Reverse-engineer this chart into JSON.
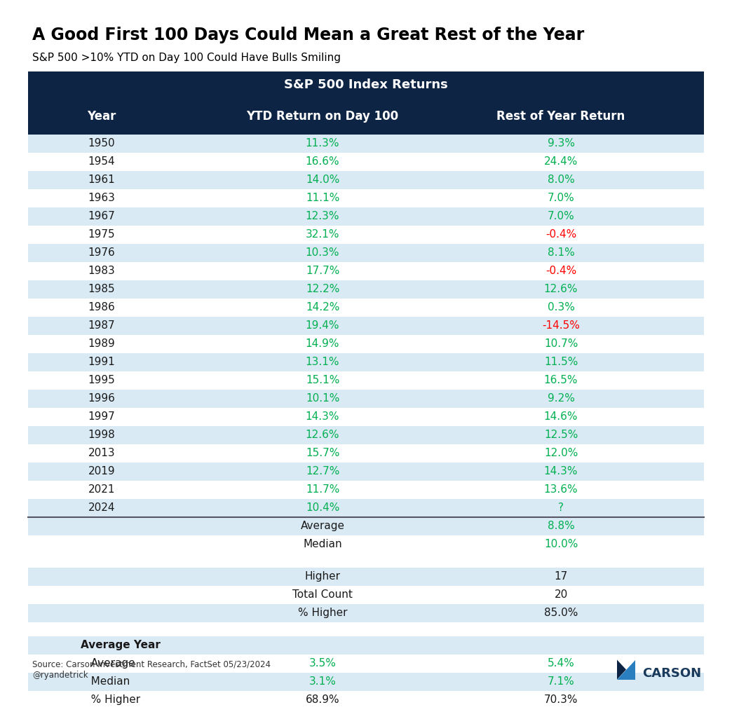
{
  "title": "A Good First 100 Days Could Mean a Great Rest of the Year",
  "subtitle": "S&P 500 >10% YTD on Day 100 Could Have Bulls Smiling",
  "table_header": "S&P 500 Index Returns",
  "col_headers": [
    "Year",
    "YTD Return on Day 100",
    "Rest of Year Return"
  ],
  "rows": [
    [
      "1950",
      "11.3%",
      "9.3%",
      "green",
      "green"
    ],
    [
      "1954",
      "16.6%",
      "24.4%",
      "green",
      "green"
    ],
    [
      "1961",
      "14.0%",
      "8.0%",
      "green",
      "green"
    ],
    [
      "1963",
      "11.1%",
      "7.0%",
      "green",
      "green"
    ],
    [
      "1967",
      "12.3%",
      "7.0%",
      "green",
      "green"
    ],
    [
      "1975",
      "32.1%",
      "-0.4%",
      "green",
      "red"
    ],
    [
      "1976",
      "10.3%",
      "8.1%",
      "green",
      "green"
    ],
    [
      "1983",
      "17.7%",
      "-0.4%",
      "green",
      "red"
    ],
    [
      "1985",
      "12.2%",
      "12.6%",
      "green",
      "green"
    ],
    [
      "1986",
      "14.2%",
      "0.3%",
      "green",
      "green"
    ],
    [
      "1987",
      "19.4%",
      "-14.5%",
      "green",
      "red"
    ],
    [
      "1989",
      "14.9%",
      "10.7%",
      "green",
      "green"
    ],
    [
      "1991",
      "13.1%",
      "11.5%",
      "green",
      "green"
    ],
    [
      "1995",
      "15.1%",
      "16.5%",
      "green",
      "green"
    ],
    [
      "1996",
      "10.1%",
      "9.2%",
      "green",
      "green"
    ],
    [
      "1997",
      "14.3%",
      "14.6%",
      "green",
      "green"
    ],
    [
      "1998",
      "12.6%",
      "12.5%",
      "green",
      "green"
    ],
    [
      "2013",
      "15.7%",
      "12.0%",
      "green",
      "green"
    ],
    [
      "2019",
      "12.7%",
      "14.3%",
      "green",
      "green"
    ],
    [
      "2021",
      "11.7%",
      "13.6%",
      "green",
      "green"
    ],
    [
      "2024",
      "10.4%",
      "?",
      "green",
      "green"
    ]
  ],
  "summary_rows": [
    {
      "label": "Average",
      "col3": "8.8%",
      "col3_color": "green"
    },
    {
      "label": "Median",
      "col3": "10.0%",
      "col3_color": "green"
    }
  ],
  "stats_rows": [
    {
      "label": "Higher",
      "col3": "17",
      "col3_color": "black"
    },
    {
      "label": "Total Count",
      "col3": "20",
      "col3_color": "black"
    },
    {
      "label": "% Higher",
      "col3": "85.0%",
      "col3_color": "black"
    }
  ],
  "avg_year_rows": [
    {
      "label": "Average Year",
      "col2": "",
      "col3": "",
      "col2_color": "black",
      "col3_color": "black",
      "bold": true
    },
    {
      "label": "   Average",
      "col2": "3.5%",
      "col3": "5.4%",
      "col2_color": "green",
      "col3_color": "green",
      "bold": false
    },
    {
      "label": "   Median",
      "col2": "3.1%",
      "col3": "7.1%",
      "col2_color": "green",
      "col3_color": "green",
      "bold": false
    },
    {
      "label": "   % Higher",
      "col2": "68.9%",
      "col3": "70.3%",
      "col2_color": "black",
      "col3_color": "black",
      "bold": false
    }
  ],
  "source_text": "Source: Carson Investment Research, FactSet 05/23/2024\n@ryandetrick",
  "header_bg": "#0d2445",
  "header_text": "#ffffff",
  "row_bg_alt": "#daeaf5",
  "row_bg_white": "#ffffff",
  "green_color": "#00b050",
  "red_color": "#ff0000",
  "black_color": "#1a1a1a"
}
